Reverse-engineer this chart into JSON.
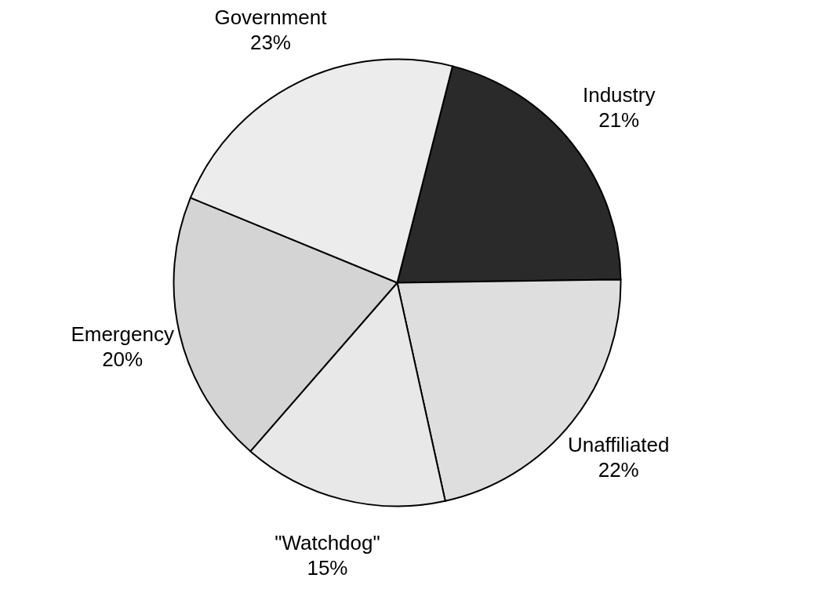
{
  "chart_data": {
    "type": "pie",
    "categories": [
      "Industry",
      "Unaffiliated",
      "\"Watchdog\"",
      "Emergency",
      "Government"
    ],
    "values": [
      21,
      22,
      15,
      20,
      23
    ],
    "value_labels": [
      "21%",
      "22%",
      "15%",
      "20%",
      "23%"
    ],
    "colors": [
      "#2a2a2a",
      "#dedede",
      "#e8e8e8",
      "#d4d4d4",
      "#ececec"
    ],
    "legend": false
  }
}
